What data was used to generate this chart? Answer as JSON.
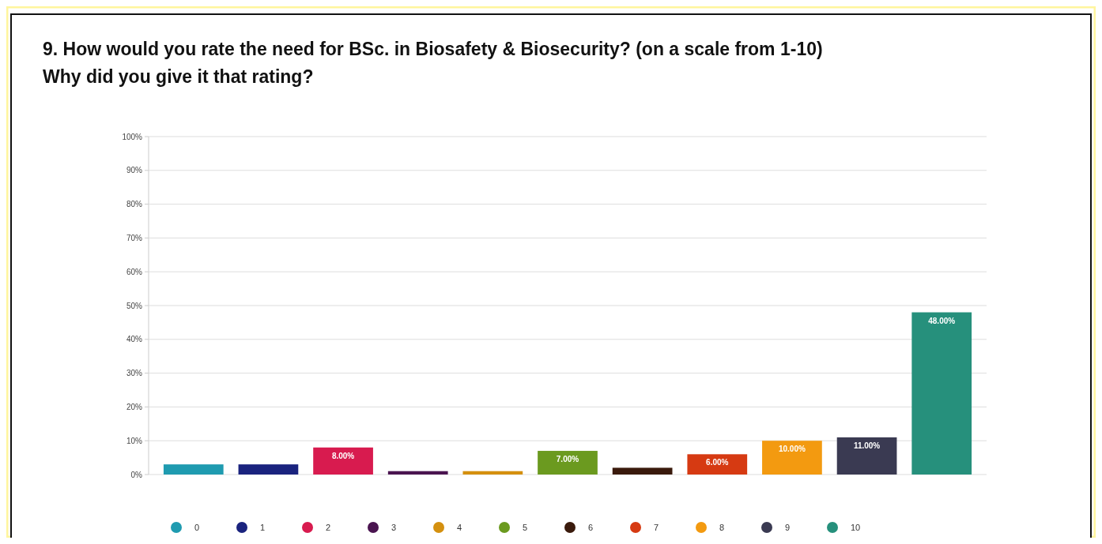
{
  "chart_data": {
    "type": "bar",
    "title": "9. How would you rate the need for BSc. in Biosafety & Biosecurity? (on a scale from 1-10)\nWhy did you give it that rating?",
    "categories": [
      null
    ],
    "series": [
      {
        "name": "0",
        "color": "#1f9bb0",
        "values": [
          3
        ]
      },
      {
        "name": "1",
        "color": "#1a237e",
        "values": [
          3
        ]
      },
      {
        "name": "2",
        "color": "#d81b4f",
        "values": [
          8
        ],
        "value_labels": [
          "8.00%"
        ]
      },
      {
        "name": "3",
        "color": "#4a1450",
        "values": [
          1
        ]
      },
      {
        "name": "4",
        "color": "#d4900f",
        "values": [
          1
        ]
      },
      {
        "name": "5",
        "color": "#6b9a1f",
        "values": [
          7
        ],
        "value_labels": [
          "7.00%"
        ]
      },
      {
        "name": "6",
        "color": "#3a1a0c",
        "values": [
          2
        ]
      },
      {
        "name": "7",
        "color": "#d63a12",
        "values": [
          6
        ],
        "value_labels": [
          "6.00%"
        ]
      },
      {
        "name": "8",
        "color": "#f39a10",
        "values": [
          10
        ],
        "value_labels": [
          "10.00%"
        ]
      },
      {
        "name": "9",
        "color": "#3a3a52",
        "values": [
          11
        ],
        "value_labels": [
          "11.00%"
        ]
      },
      {
        "name": "10",
        "color": "#26907c",
        "values": [
          48
        ],
        "value_labels": [
          "48.00%"
        ]
      }
    ],
    "ylim": [
      0,
      100
    ],
    "yticks": [
      {
        "value": 0,
        "label": "0%"
      },
      {
        "value": 10,
        "label": "10%"
      },
      {
        "value": 20,
        "label": "20%"
      },
      {
        "value": 30,
        "label": "30%"
      },
      {
        "value": 40,
        "label": "40%"
      },
      {
        "value": 50,
        "label": "50%"
      },
      {
        "value": 60,
        "label": "60%"
      },
      {
        "value": 70,
        "label": "70%"
      },
      {
        "value": 80,
        "label": "80%"
      },
      {
        "value": 90,
        "label": "90%"
      },
      {
        "value": 100,
        "label": "100%"
      }
    ],
    "grid": "y",
    "legend": "bottom",
    "tick_labels": "y"
  }
}
